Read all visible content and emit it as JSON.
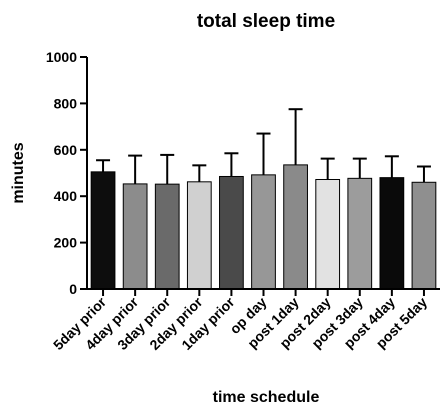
{
  "chart_data": {
    "type": "bar",
    "title": "total sleep time",
    "xlabel": "time schedule",
    "ylabel": "minutes",
    "ylim": [
      0,
      1000
    ],
    "yticks": [
      0,
      200,
      400,
      600,
      800,
      1000
    ],
    "grid": false,
    "categories": [
      "5day prior",
      "4day prior",
      "3day prior",
      "2day prior",
      "1day prior",
      "op day",
      "post 1day",
      "post 2day",
      "post 3day",
      "post 4day",
      "post 5day"
    ],
    "values": [
      505,
      453,
      452,
      462,
      485,
      492,
      535,
      472,
      477,
      480,
      460
    ],
    "error_upper": [
      555,
      575,
      578,
      533,
      585,
      670,
      775,
      562,
      562,
      572,
      528
    ],
    "colors": [
      "#0d0d0d",
      "#8c8c8c",
      "#6a6a6a",
      "#d0d0d0",
      "#4a4a4a",
      "#979797",
      "#8a8a8a",
      "#e2e2e2",
      "#9c9c9c",
      "#0a0a0a",
      "#8f8f8f"
    ]
  }
}
